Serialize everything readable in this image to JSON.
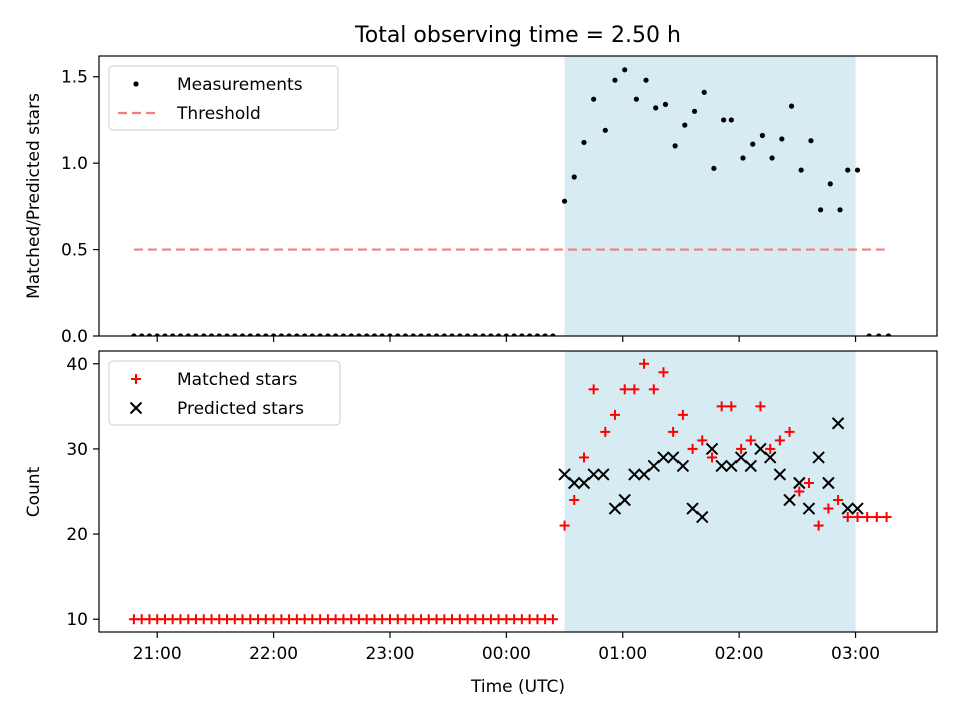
{
  "chart_data": [
    {
      "type": "scatter",
      "title": "Total observing time = 2.50 h",
      "ylabel": "Matched/Predicted stars",
      "ylim": [
        0,
        1.62
      ],
      "xlim": [
        -3.5,
        3.7
      ],
      "yticks": [
        {
          "v": 0.0,
          "label": "0.0"
        },
        {
          "v": 0.5,
          "label": "0.5"
        },
        {
          "v": 1.0,
          "label": "1.0"
        },
        {
          "v": 1.5,
          "label": "1.5"
        }
      ],
      "shaded_region": {
        "x": [
          0.5,
          3.0
        ],
        "color": "#add8e6"
      },
      "legend_position": "upper-left",
      "series": [
        {
          "name": "Measurements",
          "marker": "dot",
          "color": "#000000",
          "x": [
            -3.2,
            -3.133,
            -3.067,
            -3.0,
            -2.933,
            -2.867,
            -2.8,
            -2.733,
            -2.667,
            -2.6,
            -2.533,
            -2.467,
            -2.4,
            -2.333,
            -2.267,
            -2.2,
            -2.133,
            -2.067,
            -2.0,
            -1.933,
            -1.867,
            -1.8,
            -1.733,
            -1.667,
            -1.6,
            -1.533,
            -1.467,
            -1.4,
            -1.333,
            -1.267,
            -1.2,
            -1.133,
            -1.067,
            -1.0,
            -0.933,
            -0.867,
            -0.8,
            -0.733,
            -0.667,
            -0.6,
            -0.533,
            -0.467,
            -0.4,
            -0.333,
            -0.267,
            -0.2,
            -0.133,
            -0.067,
            0.0,
            0.067,
            0.133,
            0.2,
            0.267,
            0.333,
            0.4,
            0.5,
            0.583,
            0.667,
            0.75,
            0.85,
            0.933,
            1.017,
            1.117,
            1.2,
            1.283,
            1.367,
            1.45,
            1.533,
            1.617,
            1.7,
            1.783,
            1.867,
            1.933,
            2.033,
            2.117,
            2.2,
            2.283,
            2.367,
            2.45,
            2.533,
            2.617,
            2.7,
            2.783,
            2.867,
            2.933,
            3.017,
            3.117,
            3.2,
            3.283
          ],
          "y": [
            0,
            0,
            0,
            0,
            0,
            0,
            0,
            0,
            0,
            0,
            0,
            0,
            0,
            0,
            0,
            0,
            0,
            0,
            0,
            0,
            0,
            0,
            0,
            0,
            0,
            0,
            0,
            0,
            0,
            0,
            0,
            0,
            0,
            0,
            0,
            0,
            0,
            0,
            0,
            0,
            0,
            0,
            0,
            0,
            0,
            0,
            0,
            0,
            0,
            0,
            0,
            0,
            0,
            0,
            0,
            0.78,
            0.92,
            1.12,
            1.37,
            1.19,
            1.48,
            1.54,
            1.37,
            1.48,
            1.32,
            1.34,
            1.1,
            1.22,
            1.3,
            1.41,
            0.97,
            1.25,
            1.25,
            1.03,
            1.11,
            1.16,
            1.03,
            1.14,
            1.33,
            0.96,
            1.13,
            0.73,
            0.88,
            0.73,
            0.96,
            0.96,
            0,
            0,
            0
          ]
        },
        {
          "name": "Threshold",
          "marker": "dashed-line",
          "color": "#f08080",
          "x": [
            -3.2,
            3.25
          ],
          "y": [
            0.5,
            0.5
          ]
        }
      ]
    },
    {
      "type": "scatter",
      "xlabel": "Time (UTC)",
      "ylabel": "Count",
      "ylim": [
        8.5,
        41.5
      ],
      "xlim": [
        -3.5,
        3.7
      ],
      "yticks": [
        {
          "v": 10,
          "label": "10"
        },
        {
          "v": 20,
          "label": "20"
        },
        {
          "v": 30,
          "label": "30"
        },
        {
          "v": 40,
          "label": "40"
        }
      ],
      "xticks": [
        {
          "v": -3,
          "label": "21:00"
        },
        {
          "v": -2,
          "label": "22:00"
        },
        {
          "v": -1,
          "label": "23:00"
        },
        {
          "v": 0,
          "label": "00:00"
        },
        {
          "v": 1,
          "label": "01:00"
        },
        {
          "v": 2,
          "label": "02:00"
        },
        {
          "v": 3,
          "label": "03:00"
        }
      ],
      "shaded_region": {
        "x": [
          0.5,
          3.0
        ],
        "color": "#add8e6"
      },
      "legend_position": "upper-left",
      "series": [
        {
          "name": "Matched stars",
          "marker": "plus",
          "color": "#ff0000",
          "x": [
            -3.2,
            -3.133,
            -3.067,
            -3.0,
            -2.933,
            -2.867,
            -2.8,
            -2.733,
            -2.667,
            -2.6,
            -2.533,
            -2.467,
            -2.4,
            -2.333,
            -2.267,
            -2.2,
            -2.133,
            -2.067,
            -2.0,
            -1.933,
            -1.867,
            -1.8,
            -1.733,
            -1.667,
            -1.6,
            -1.533,
            -1.467,
            -1.4,
            -1.333,
            -1.267,
            -1.2,
            -1.133,
            -1.067,
            -1.0,
            -0.933,
            -0.867,
            -0.8,
            -0.733,
            -0.667,
            -0.6,
            -0.533,
            -0.467,
            -0.4,
            -0.333,
            -0.267,
            -0.2,
            -0.133,
            -0.067,
            0.0,
            0.067,
            0.133,
            0.2,
            0.267,
            0.333,
            0.4,
            0.5,
            0.583,
            0.667,
            0.75,
            0.85,
            0.933,
            1.017,
            1.1,
            1.183,
            1.267,
            1.35,
            1.433,
            1.517,
            1.6,
            1.683,
            1.767,
            1.85,
            1.933,
            2.017,
            2.1,
            2.183,
            2.267,
            2.35,
            2.433,
            2.517,
            2.6,
            2.683,
            2.767,
            2.85,
            2.933,
            3.017,
            3.1,
            3.183,
            3.267
          ],
          "y": [
            10,
            10,
            10,
            10,
            10,
            10,
            10,
            10,
            10,
            10,
            10,
            10,
            10,
            10,
            10,
            10,
            10,
            10,
            10,
            10,
            10,
            10,
            10,
            10,
            10,
            10,
            10,
            10,
            10,
            10,
            10,
            10,
            10,
            10,
            10,
            10,
            10,
            10,
            10,
            10,
            10,
            10,
            10,
            10,
            10,
            10,
            10,
            10,
            10,
            10,
            10,
            10,
            10,
            10,
            10,
            21,
            24,
            29,
            37,
            32,
            34,
            37,
            37,
            40,
            37,
            39,
            32,
            34,
            30,
            31,
            29,
            35,
            35,
            30,
            31,
            35,
            30,
            31,
            32,
            25,
            26,
            21,
            23,
            24,
            22,
            22,
            22,
            22,
            22
          ]
        },
        {
          "name": "Predicted stars",
          "marker": "x",
          "color": "#000000",
          "x": [
            0.5,
            0.583,
            0.667,
            0.75,
            0.833,
            0.933,
            1.017,
            1.1,
            1.183,
            1.267,
            1.35,
            1.433,
            1.517,
            1.6,
            1.683,
            1.767,
            1.85,
            1.933,
            2.017,
            2.1,
            2.183,
            2.267,
            2.35,
            2.433,
            2.517,
            2.6,
            2.683,
            2.767,
            2.85,
            2.933,
            3.017
          ],
          "y": [
            27,
            26,
            26,
            27,
            27,
            23,
            24,
            27,
            27,
            28,
            29,
            29,
            28,
            23,
            22,
            30,
            28,
            28,
            29,
            28,
            30,
            29,
            27,
            24,
            26,
            23,
            29,
            26,
            33,
            23,
            23
          ]
        }
      ]
    }
  ]
}
